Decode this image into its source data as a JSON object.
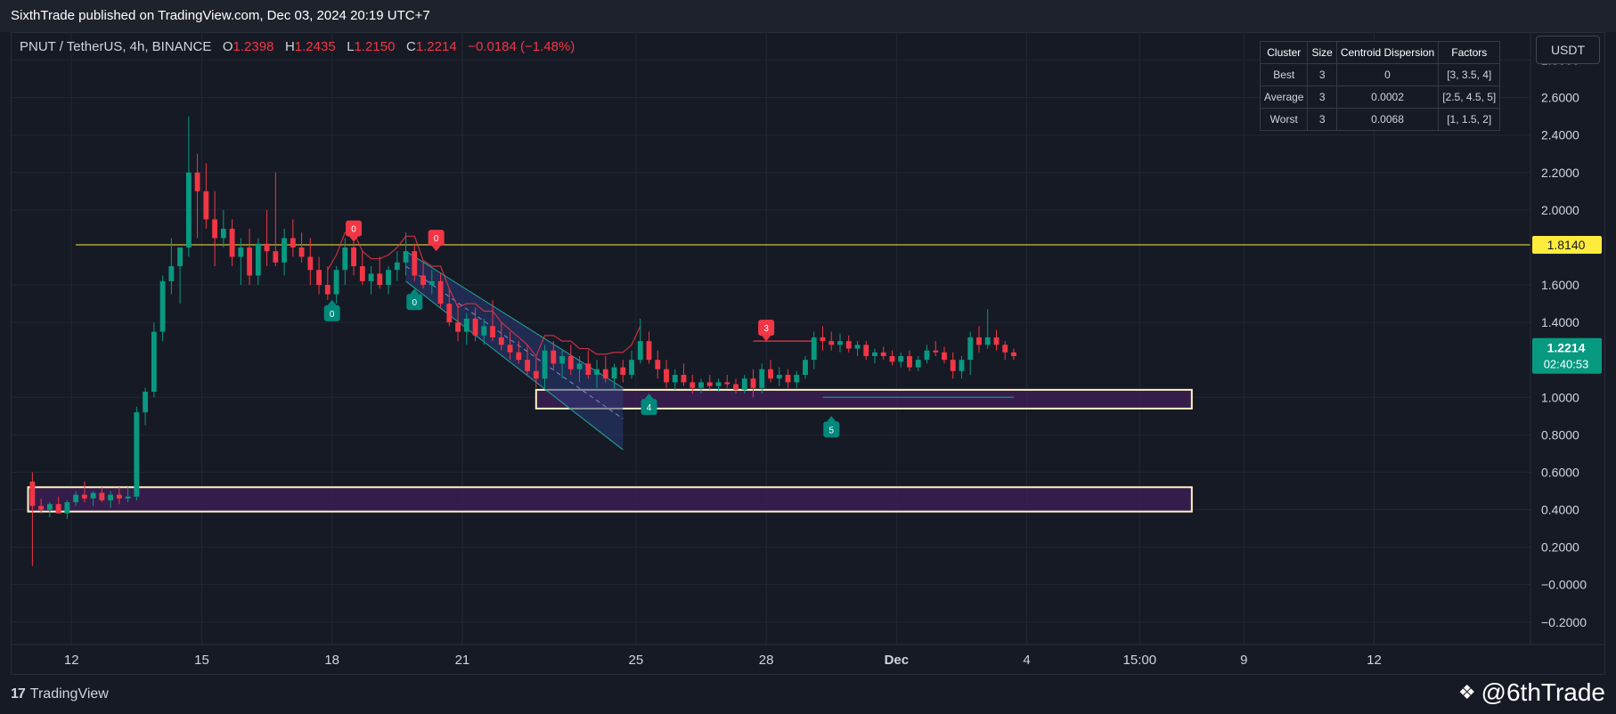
{
  "header": {
    "published_text": "SixthTrade published on TradingView.com, Dec 03, 2024 20:19 UTC+7"
  },
  "legend": {
    "symbol": "PNUT / TetherUS, 4h, BINANCE",
    "open_label": "O",
    "open": "1.2398",
    "high_label": "H",
    "high": "1.2435",
    "low_label": "L",
    "low": "1.2150",
    "close_label": "C",
    "close": "1.2214",
    "change": "−0.0184 (−1.48%)"
  },
  "currency_button": "USDT",
  "cluster_table": {
    "headers": [
      "Cluster",
      "Size",
      "Centroid Dispersion",
      "Factors"
    ],
    "rows": [
      [
        "Best",
        "3",
        "0",
        "[3, 3.5, 4]"
      ],
      [
        "Average",
        "3",
        "0.0002",
        "[2.5, 4.5, 5]"
      ],
      [
        "Worst",
        "3",
        "0.0068",
        "[1, 1.5, 2]"
      ]
    ]
  },
  "footer": {
    "brand": "TradingView",
    "watermark": "@6thTrade"
  },
  "colors": {
    "background": "#161a25",
    "up": "#089981",
    "down": "#f23645",
    "resistance_line": "#ffeb3b",
    "zone_fill": "#3b1f52",
    "zone_border": "#fff3c4",
    "channel_fill": "#2a3a78",
    "price_label": "#089981"
  },
  "chart_data": {
    "type": "candlestick",
    "y_ticks": [
      "2.8000",
      "2.6000",
      "2.4000",
      "2.2000",
      "2.0000",
      "1.6000",
      "1.4000",
      "1.0000",
      "0.8000",
      "0.6000",
      "0.4000",
      "0.2000",
      "−0.0000",
      "−0.2000"
    ],
    "ylim": [
      -0.32,
      2.95
    ],
    "x_ticks": [
      {
        "label": "12",
        "day": 12
      },
      {
        "label": "15",
        "day": 15
      },
      {
        "label": "18",
        "day": 18
      },
      {
        "label": "21",
        "day": 21
      },
      {
        "label": "25",
        "day": 25
      },
      {
        "label": "28",
        "day": 28
      },
      {
        "label": "Dec",
        "day": 31
      },
      {
        "label": "4",
        "day": 34
      },
      {
        "label": "15:00",
        "day": 36.6
      },
      {
        "label": "9",
        "day": 39
      },
      {
        "label": "12",
        "day": 42
      }
    ],
    "xlim": [
      10.6,
      45.6
    ],
    "resistance_level": 1.814,
    "resistance_label": "1.8140",
    "current_price": 1.2214,
    "current_price_label": "1.2214",
    "countdown": "02:40:53",
    "zones": [
      {
        "from_day": 22.7,
        "to_day": 37.8,
        "low": 0.94,
        "high": 1.04
      },
      {
        "from_day": 11.0,
        "to_day": 37.8,
        "low": 0.39,
        "high": 0.52
      }
    ],
    "channel": {
      "upper": [
        [
          19.7,
          1.78
        ],
        [
          24.7,
          1.05
        ]
      ],
      "lower": [
        [
          19.7,
          1.62
        ],
        [
          24.7,
          0.72
        ]
      ]
    },
    "markers": [
      {
        "label": "0",
        "kind": "sell",
        "day": 18.5,
        "price": 1.83
      },
      {
        "label": "0",
        "kind": "sell",
        "day": 20.4,
        "price": 1.78
      },
      {
        "label": "3",
        "kind": "sell",
        "day": 28.0,
        "price": 1.3
      },
      {
        "label": "0",
        "kind": "buy",
        "day": 18.0,
        "price": 1.52
      },
      {
        "label": "0",
        "kind": "buy",
        "day": 19.9,
        "price": 1.58
      },
      {
        "label": "4",
        "kind": "buy",
        "day": 25.3,
        "price": 1.02
      },
      {
        "label": "5",
        "kind": "buy",
        "day": 29.5,
        "price": 0.9
      }
    ],
    "series": [
      {
        "name": "ohlc",
        "candles": [
          [
            11.1,
            0.55,
            0.6,
            0.1,
            0.42
          ],
          [
            11.3,
            0.42,
            0.46,
            0.38,
            0.4
          ],
          [
            11.5,
            0.4,
            0.44,
            0.36,
            0.43
          ],
          [
            11.7,
            0.43,
            0.47,
            0.4,
            0.38
          ],
          [
            11.9,
            0.38,
            0.45,
            0.35,
            0.44
          ],
          [
            12.1,
            0.44,
            0.5,
            0.42,
            0.48
          ],
          [
            12.3,
            0.48,
            0.55,
            0.44,
            0.46
          ],
          [
            12.5,
            0.46,
            0.5,
            0.42,
            0.49
          ],
          [
            12.7,
            0.49,
            0.52,
            0.44,
            0.45
          ],
          [
            12.9,
            0.45,
            0.5,
            0.41,
            0.48
          ],
          [
            13.1,
            0.48,
            0.52,
            0.43,
            0.46
          ],
          [
            13.3,
            0.46,
            0.52,
            0.44,
            0.47
          ],
          [
            13.5,
            0.47,
            0.95,
            0.45,
            0.92
          ],
          [
            13.7,
            0.92,
            1.05,
            0.85,
            1.03
          ],
          [
            13.9,
            1.03,
            1.4,
            1.0,
            1.35
          ],
          [
            14.1,
            1.35,
            1.65,
            1.3,
            1.62
          ],
          [
            14.3,
            1.62,
            1.85,
            1.55,
            1.7
          ],
          [
            14.5,
            1.7,
            1.8,
            1.5,
            1.8
          ],
          [
            14.7,
            1.8,
            2.5,
            1.75,
            2.2
          ],
          [
            14.9,
            2.2,
            2.3,
            1.85,
            2.1
          ],
          [
            15.1,
            2.1,
            2.25,
            1.9,
            1.95
          ],
          [
            15.3,
            1.95,
            2.1,
            1.7,
            1.85
          ],
          [
            15.5,
            1.85,
            2.0,
            1.8,
            1.9
          ],
          [
            15.7,
            1.9,
            1.95,
            1.7,
            1.75
          ],
          [
            15.9,
            1.75,
            1.85,
            1.6,
            1.8
          ],
          [
            16.1,
            1.8,
            1.9,
            1.6,
            1.65
          ],
          [
            16.3,
            1.65,
            1.85,
            1.6,
            1.82
          ],
          [
            16.5,
            1.82,
            2.0,
            1.7,
            1.78
          ],
          [
            16.7,
            1.78,
            2.2,
            1.7,
            1.72
          ],
          [
            16.9,
            1.72,
            1.9,
            1.65,
            1.85
          ],
          [
            17.1,
            1.85,
            1.95,
            1.75,
            1.8
          ],
          [
            17.3,
            1.8,
            1.88,
            1.72,
            1.75
          ],
          [
            17.5,
            1.75,
            1.85,
            1.6,
            1.68
          ],
          [
            17.7,
            1.68,
            1.75,
            1.55,
            1.6
          ],
          [
            17.9,
            1.6,
            1.7,
            1.52,
            1.55
          ],
          [
            18.1,
            1.55,
            1.7,
            1.5,
            1.68
          ],
          [
            18.3,
            1.68,
            1.85,
            1.6,
            1.8
          ],
          [
            18.5,
            1.8,
            1.85,
            1.65,
            1.7
          ],
          [
            18.7,
            1.7,
            1.78,
            1.6,
            1.62
          ],
          [
            18.9,
            1.62,
            1.7,
            1.55,
            1.66
          ],
          [
            19.1,
            1.66,
            1.75,
            1.58,
            1.6
          ],
          [
            19.3,
            1.6,
            1.7,
            1.55,
            1.68
          ],
          [
            19.5,
            1.68,
            1.78,
            1.62,
            1.72
          ],
          [
            19.7,
            1.72,
            1.88,
            1.65,
            1.78
          ],
          [
            19.9,
            1.78,
            1.82,
            1.62,
            1.65
          ],
          [
            20.1,
            1.65,
            1.72,
            1.58,
            1.6
          ],
          [
            20.3,
            1.6,
            1.68,
            1.55,
            1.62
          ],
          [
            20.5,
            1.62,
            1.66,
            1.48,
            1.5
          ],
          [
            20.7,
            1.5,
            1.58,
            1.38,
            1.4
          ],
          [
            20.9,
            1.4,
            1.5,
            1.3,
            1.35
          ],
          [
            21.1,
            1.35,
            1.45,
            1.28,
            1.42
          ],
          [
            21.3,
            1.42,
            1.48,
            1.3,
            1.33
          ],
          [
            21.5,
            1.33,
            1.42,
            1.28,
            1.38
          ],
          [
            21.7,
            1.38,
            1.52,
            1.3,
            1.32
          ],
          [
            21.9,
            1.32,
            1.4,
            1.25,
            1.28
          ],
          [
            22.1,
            1.28,
            1.35,
            1.2,
            1.24
          ],
          [
            22.3,
            1.24,
            1.3,
            1.18,
            1.2
          ],
          [
            22.5,
            1.2,
            1.28,
            1.12,
            1.14
          ],
          [
            22.7,
            1.14,
            1.22,
            1.05,
            1.1
          ],
          [
            22.9,
            1.1,
            1.28,
            1.05,
            1.25
          ],
          [
            23.1,
            1.25,
            1.3,
            1.15,
            1.18
          ],
          [
            23.3,
            1.18,
            1.25,
            1.1,
            1.22
          ],
          [
            23.5,
            1.22,
            1.28,
            1.12,
            1.15
          ],
          [
            23.7,
            1.15,
            1.22,
            1.08,
            1.18
          ],
          [
            23.9,
            1.18,
            1.25,
            1.1,
            1.12
          ],
          [
            24.1,
            1.12,
            1.2,
            1.05,
            1.15
          ],
          [
            24.3,
            1.15,
            1.22,
            1.08,
            1.1
          ],
          [
            24.5,
            1.1,
            1.18,
            1.04,
            1.16
          ],
          [
            24.7,
            1.16,
            1.2,
            1.08,
            1.12
          ],
          [
            24.9,
            1.12,
            1.25,
            1.1,
            1.2
          ],
          [
            25.1,
            1.2,
            1.42,
            1.18,
            1.3
          ],
          [
            25.3,
            1.3,
            1.35,
            1.18,
            1.2
          ],
          [
            25.5,
            1.2,
            1.25,
            1.1,
            1.15
          ],
          [
            25.7,
            1.15,
            1.2,
            1.05,
            1.08
          ],
          [
            25.9,
            1.08,
            1.15,
            1.04,
            1.12
          ],
          [
            26.1,
            1.12,
            1.18,
            1.06,
            1.08
          ],
          [
            26.3,
            1.08,
            1.12,
            1.02,
            1.05
          ],
          [
            26.5,
            1.05,
            1.1,
            1.02,
            1.08
          ],
          [
            26.7,
            1.08,
            1.12,
            1.04,
            1.06
          ],
          [
            26.9,
            1.06,
            1.1,
            1.03,
            1.08
          ],
          [
            27.1,
            1.08,
            1.12,
            1.05,
            1.07
          ],
          [
            27.3,
            1.07,
            1.1,
            1.02,
            1.04
          ],
          [
            27.5,
            1.04,
            1.12,
            1.02,
            1.1
          ],
          [
            27.7,
            1.1,
            1.15,
            1.0,
            1.05
          ],
          [
            27.9,
            1.05,
            1.18,
            1.02,
            1.15
          ],
          [
            28.1,
            1.15,
            1.2,
            1.08,
            1.1
          ],
          [
            28.3,
            1.1,
            1.16,
            1.06,
            1.12
          ],
          [
            28.5,
            1.12,
            1.15,
            1.05,
            1.08
          ],
          [
            28.7,
            1.08,
            1.14,
            1.05,
            1.12
          ],
          [
            28.9,
            1.12,
            1.22,
            1.1,
            1.2
          ],
          [
            29.1,
            1.2,
            1.35,
            1.15,
            1.32
          ],
          [
            29.3,
            1.32,
            1.38,
            1.25,
            1.3
          ],
          [
            29.5,
            1.3,
            1.35,
            1.25,
            1.28
          ],
          [
            29.7,
            1.28,
            1.34,
            1.24,
            1.3
          ],
          [
            29.9,
            1.3,
            1.33,
            1.24,
            1.26
          ],
          [
            30.1,
            1.26,
            1.3,
            1.22,
            1.28
          ],
          [
            30.3,
            1.28,
            1.3,
            1.2,
            1.22
          ],
          [
            30.5,
            1.22,
            1.26,
            1.18,
            1.24
          ],
          [
            30.7,
            1.24,
            1.27,
            1.2,
            1.22
          ],
          [
            30.9,
            1.22,
            1.25,
            1.17,
            1.19
          ],
          [
            31.1,
            1.19,
            1.24,
            1.16,
            1.22
          ],
          [
            31.3,
            1.22,
            1.25,
            1.14,
            1.16
          ],
          [
            31.5,
            1.16,
            1.22,
            1.14,
            1.2
          ],
          [
            31.7,
            1.2,
            1.28,
            1.18,
            1.25
          ],
          [
            31.9,
            1.25,
            1.3,
            1.22,
            1.24
          ],
          [
            32.1,
            1.24,
            1.27,
            1.18,
            1.2
          ],
          [
            32.3,
            1.2,
            1.24,
            1.1,
            1.14
          ],
          [
            32.5,
            1.14,
            1.22,
            1.1,
            1.2
          ],
          [
            32.7,
            1.2,
            1.35,
            1.12,
            1.32
          ],
          [
            32.9,
            1.32,
            1.38,
            1.24,
            1.28
          ],
          [
            33.1,
            1.28,
            1.47,
            1.26,
            1.32
          ],
          [
            33.3,
            1.32,
            1.36,
            1.25,
            1.28
          ],
          [
            33.5,
            1.28,
            1.3,
            1.2,
            1.24
          ],
          [
            33.7,
            1.24,
            1.26,
            1.2,
            1.22
          ]
        ]
      }
    ]
  }
}
